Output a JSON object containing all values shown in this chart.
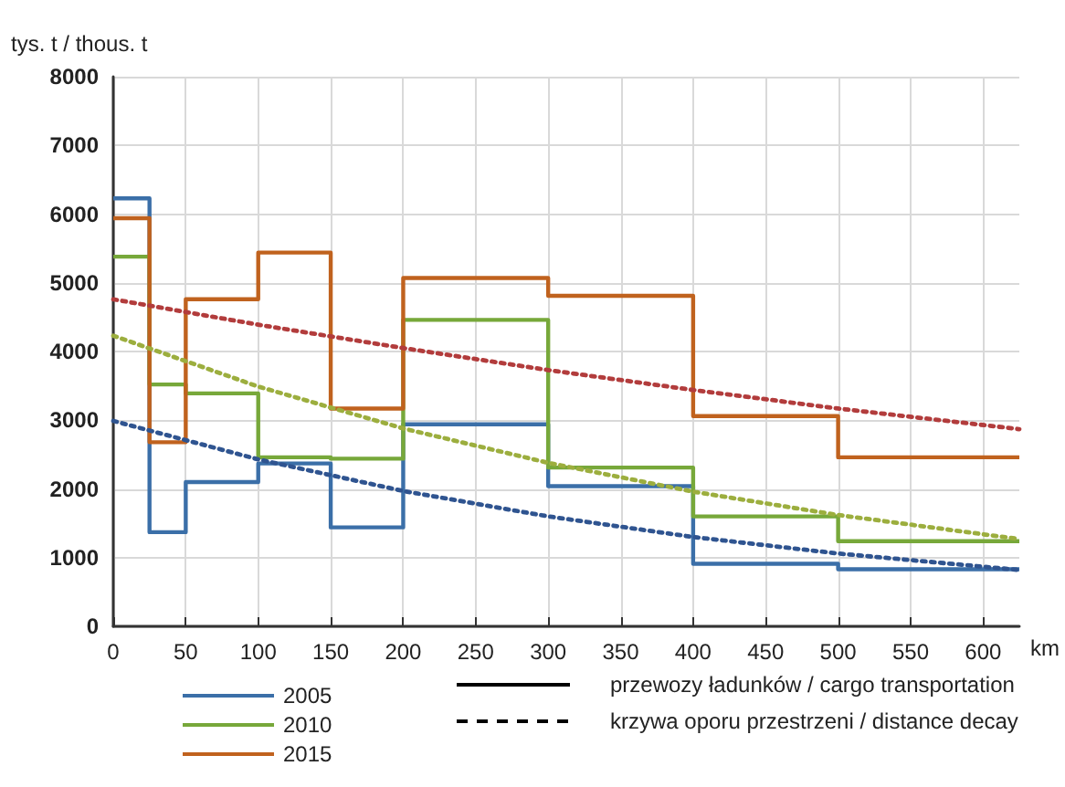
{
  "chart_data": {
    "type": "step",
    "ylabel": "tys. t / thous. t",
    "xlabel": "km",
    "xlim": [
      0,
      625
    ],
    "xticks": [
      0,
      50,
      100,
      150,
      200,
      250,
      300,
      350,
      400,
      450,
      500,
      550,
      600
    ],
    "ylim": [
      0,
      8000
    ],
    "yticks": [
      0,
      1000,
      2000,
      3000,
      4000,
      5000,
      6000,
      7000,
      8000
    ],
    "grid": true,
    "legend": "bottom left",
    "marker": "none",
    "annotations": [
      "przewozy ładunków / cargo transportation",
      "krzywa oporu przestrzeni / distance decay"
    ],
    "series": [
      {
        "name": "2005",
        "line_style": "solid",
        "color": "#3b6fa8",
        "x": [
          0,
          25,
          50,
          100,
          150,
          200,
          300,
          400,
          500,
          625
        ],
        "values": [
          6230,
          1370,
          2100,
          2370,
          1440,
          2940,
          2040,
          910,
          830,
          830
        ]
      },
      {
        "name": "2010",
        "line_style": "solid",
        "color": "#77a83a",
        "x": [
          0,
          25,
          50,
          100,
          150,
          200,
          300,
          400,
          500,
          625
        ],
        "values": [
          5380,
          3520,
          3390,
          2460,
          2440,
          4460,
          2310,
          1600,
          1240,
          1240
        ]
      },
      {
        "name": "2015",
        "line_style": "solid",
        "color": "#c0621e",
        "x": [
          0,
          25,
          50,
          100,
          150,
          200,
          300,
          400,
          500,
          625
        ],
        "values": [
          5940,
          2680,
          4760,
          5440,
          3170,
          5070,
          4810,
          3060,
          2460,
          2460
        ]
      },
      {
        "type": "line",
        "line_style": "dotted",
        "color": "#2f5490",
        "x": [
          0,
          100,
          200,
          300,
          400,
          500,
          625
        ],
        "values": [
          2990,
          2430,
          1970,
          1600,
          1300,
          1060,
          820
        ]
      },
      {
        "type": "line",
        "line_style": "dotted",
        "color": "#9cae3e",
        "x": [
          0,
          100,
          200,
          300,
          400,
          500,
          625
        ],
        "values": [
          4230,
          3490,
          2880,
          2380,
          1960,
          1620,
          1270
        ]
      },
      {
        "type": "line",
        "line_style": "dotted",
        "color": "#b23c3c",
        "x": [
          0,
          100,
          200,
          300,
          400,
          500,
          625
        ],
        "values": [
          4760,
          4390,
          4050,
          3730,
          3440,
          3170,
          2870
        ]
      }
    ]
  }
}
